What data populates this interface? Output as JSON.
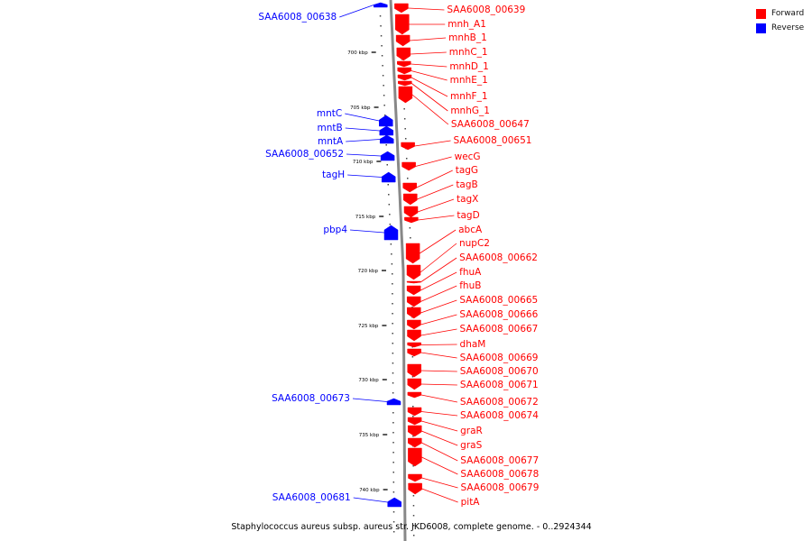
{
  "caption": "Staphylococcus aureus subsp. aureus str. JKD6008, complete genome. - 0..2924344",
  "legend": [
    {
      "label": "Forward",
      "color": "#ff0000"
    },
    {
      "label": "Reverse",
      "color": "#0000ff"
    }
  ],
  "colors": {
    "forward": "#ff0000",
    "reverse": "#0000ff",
    "backbone": "#888888"
  },
  "ticks": [
    {
      "kbp": 700,
      "label": "700 kbp"
    },
    {
      "kbp": 705,
      "label": "705 kbp"
    },
    {
      "kbp": 710,
      "label": "710 kbp"
    },
    {
      "kbp": 715,
      "label": "715 kbp"
    },
    {
      "kbp": 720,
      "label": "720 kbp"
    },
    {
      "kbp": 725,
      "label": "725 kbp"
    },
    {
      "kbp": 730,
      "label": "730 kbp"
    },
    {
      "kbp": 735,
      "label": "735 kbp"
    },
    {
      "kbp": 740,
      "label": "740 kbp"
    }
  ],
  "genes": [
    {
      "name": "SAA6008_00638",
      "strand": "reverse"
    },
    {
      "name": "SAA6008_00639",
      "strand": "forward"
    },
    {
      "name": "mnh_A1",
      "strand": "forward"
    },
    {
      "name": "mnhB_1",
      "strand": "forward"
    },
    {
      "name": "mnhC_1",
      "strand": "forward"
    },
    {
      "name": "mnhD_1",
      "strand": "forward"
    },
    {
      "name": "mnhE_1",
      "strand": "forward"
    },
    {
      "name": "mnhF_1",
      "strand": "forward"
    },
    {
      "name": "mnhG_1",
      "strand": "forward"
    },
    {
      "name": "SAA6008_00647",
      "strand": "forward"
    },
    {
      "name": "mntC",
      "strand": "reverse"
    },
    {
      "name": "mntB",
      "strand": "reverse"
    },
    {
      "name": "mntA",
      "strand": "reverse"
    },
    {
      "name": "SAA6008_00651",
      "strand": "forward"
    },
    {
      "name": "SAA6008_00652",
      "strand": "reverse"
    },
    {
      "name": "wecG",
      "strand": "forward"
    },
    {
      "name": "tagH",
      "strand": "reverse"
    },
    {
      "name": "tagG",
      "strand": "forward"
    },
    {
      "name": "tagB",
      "strand": "forward"
    },
    {
      "name": "tagX",
      "strand": "forward"
    },
    {
      "name": "tagD",
      "strand": "forward"
    },
    {
      "name": "pbp4",
      "strand": "reverse"
    },
    {
      "name": "abcA",
      "strand": "forward"
    },
    {
      "name": "nupC2",
      "strand": "forward"
    },
    {
      "name": "SAA6008_00662",
      "strand": "forward"
    },
    {
      "name": "fhuA",
      "strand": "forward"
    },
    {
      "name": "fhuB",
      "strand": "forward"
    },
    {
      "name": "SAA6008_00665",
      "strand": "forward"
    },
    {
      "name": "SAA6008_00666",
      "strand": "forward"
    },
    {
      "name": "SAA6008_00667",
      "strand": "forward"
    },
    {
      "name": "dhaM",
      "strand": "forward"
    },
    {
      "name": "SAA6008_00669",
      "strand": "forward"
    },
    {
      "name": "SAA6008_00670",
      "strand": "forward"
    },
    {
      "name": "SAA6008_00671",
      "strand": "forward"
    },
    {
      "name": "SAA6008_00672",
      "strand": "forward"
    },
    {
      "name": "SAA6008_00673",
      "strand": "reverse"
    },
    {
      "name": "SAA6008_00674",
      "strand": "forward"
    },
    {
      "name": "graR",
      "strand": "forward"
    },
    {
      "name": "graS",
      "strand": "forward"
    },
    {
      "name": "SAA6008_00677",
      "strand": "forward"
    },
    {
      "name": "SAA6008_00678",
      "strand": "forward"
    },
    {
      "name": "SAA6008_00679",
      "strand": "forward"
    },
    {
      "name": "SAA6008_00681",
      "strand": "reverse"
    },
    {
      "name": "pitA",
      "strand": "forward"
    }
  ]
}
